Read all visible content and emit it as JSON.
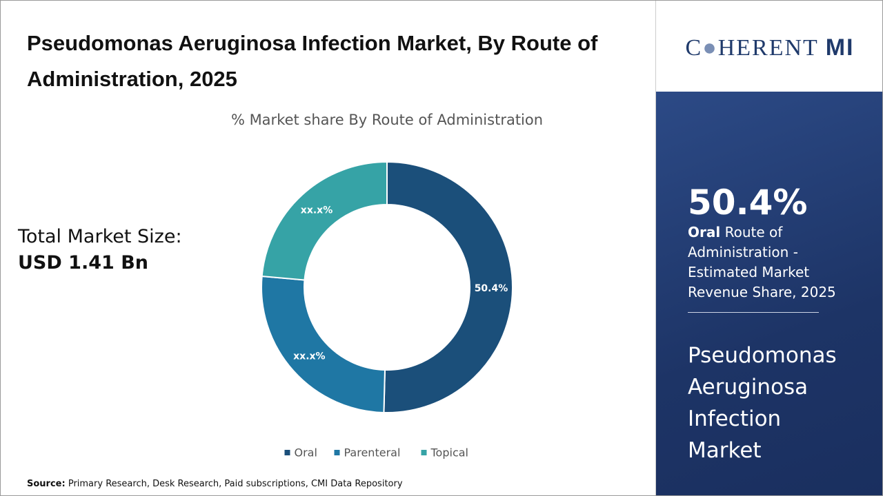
{
  "header": {
    "title": "Pseudomonas Aeruginosa Infection Market, By Route of Administration, 2025"
  },
  "total_market": {
    "label": "Total Market Size:",
    "value": "USD 1.41 Bn"
  },
  "chart_data": {
    "type": "donut",
    "title": "% Market share By Route of Administration",
    "categories": [
      "Oral",
      "Parenteral",
      "Topical"
    ],
    "values": [
      50.4,
      26,
      23.6
    ],
    "value_labels": [
      "50.4%",
      "xx.x%",
      "xx.x%"
    ],
    "colors": [
      "#1b4f7a",
      "#1f77a4",
      "#36a3a6"
    ]
  },
  "logo": {
    "left": "C",
    "middle": "HERENT",
    "right": "MI"
  },
  "highlight": {
    "value": "50.4%",
    "label_bold": "Oral",
    "label_rest": "Route of Administration - Estimated Market Revenue Share, 2025"
  },
  "side_title": "Pseudomonas Aeruginosa Infection Market",
  "source": {
    "label": "Source:",
    "text": "Primary Research, Desk Research, Paid subscriptions, CMI Data Repository"
  }
}
